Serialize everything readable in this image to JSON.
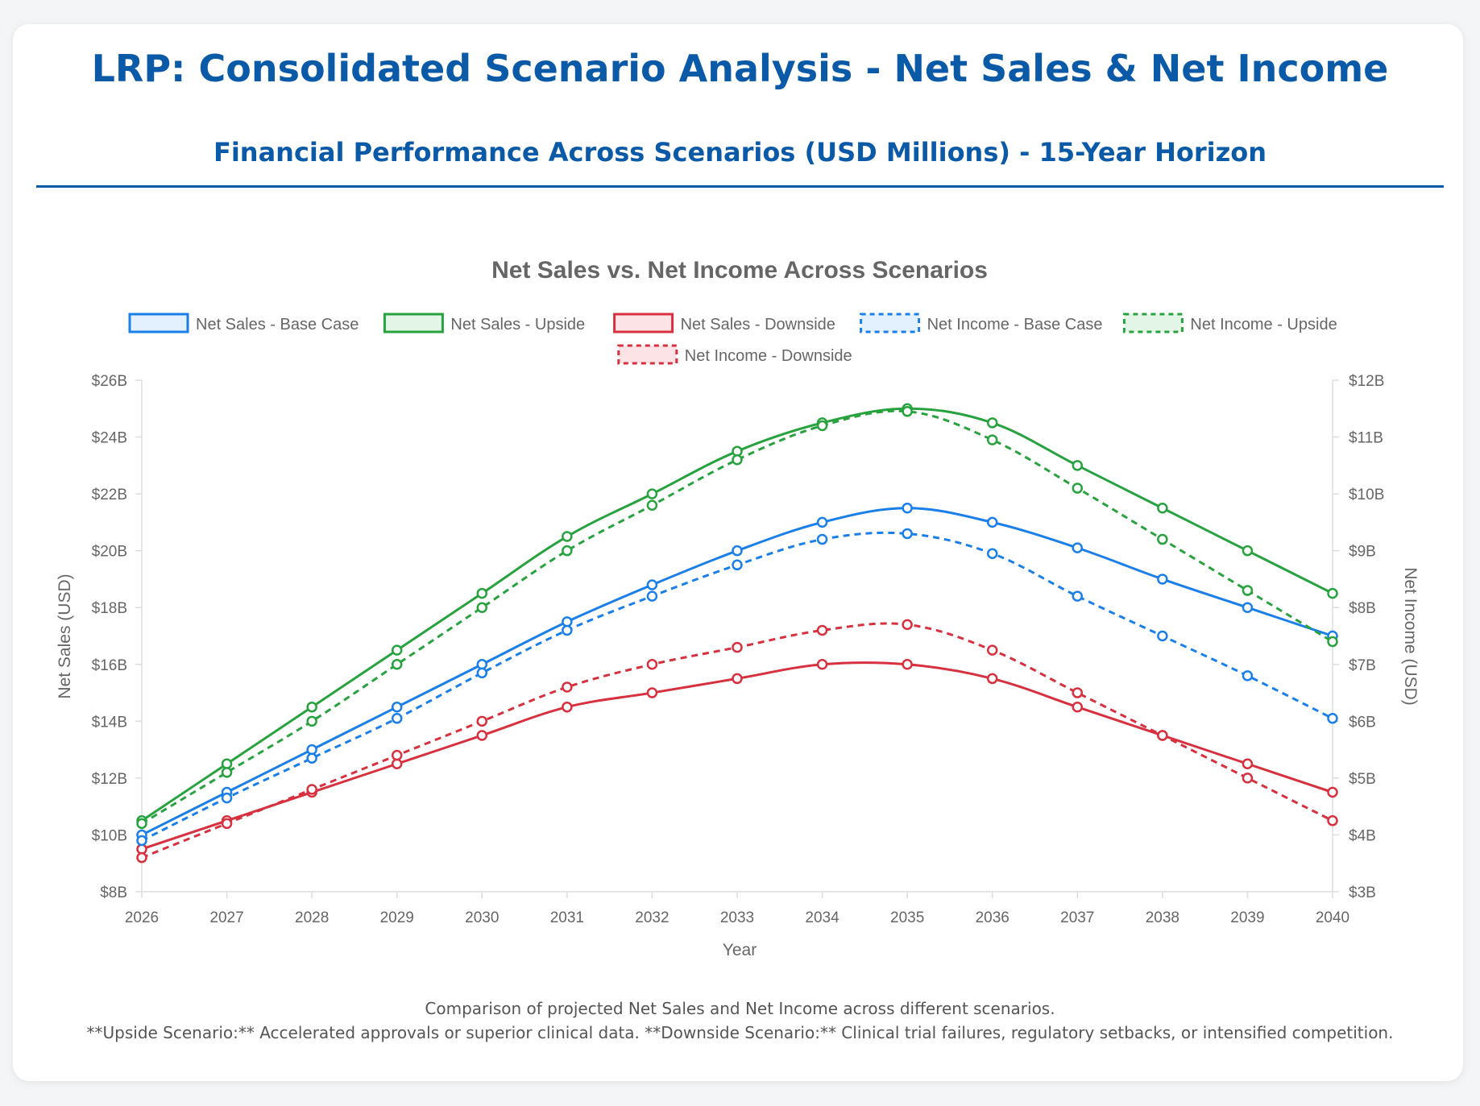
{
  "header": {
    "title": "LRP: Consolidated Scenario Analysis - Net Sales & Net Income",
    "subtitle": "Financial Performance Across Scenarios (USD Millions) - 15-Year Horizon"
  },
  "footer": {
    "line1": "Comparison of projected Net Sales and Net Income across different scenarios.",
    "line2": "**Upside Scenario:** Accelerated approvals or superior clinical data. **Downside Scenario:** Clinical trial failures, regulatory setbacks, or intensified competition."
  },
  "chart_data": {
    "type": "line",
    "title": "Net Sales vs. Net Income Across Scenarios",
    "xlabel": "Year",
    "ylabel": "Net Sales (USD)",
    "y2label": "Net Income (USD)",
    "categories": [
      "2026",
      "2027",
      "2028",
      "2029",
      "2030",
      "2031",
      "2032",
      "2033",
      "2034",
      "2035",
      "2036",
      "2037",
      "2038",
      "2039",
      "2040"
    ],
    "ylim": [
      8,
      26
    ],
    "y2lim": [
      3,
      12
    ],
    "yticks": [
      "$8B",
      "$10B",
      "$12B",
      "$14B",
      "$16B",
      "$18B",
      "$20B",
      "$22B",
      "$24B",
      "$26B"
    ],
    "y2ticks": [
      "$3B",
      "$4B",
      "$5B",
      "$6B",
      "$7B",
      "$8B",
      "$9B",
      "$10B",
      "$11B",
      "$12B"
    ],
    "grid": false,
    "legend_position": "top",
    "units": "USD billions",
    "series": [
      {
        "name": "Net Sales - Base Case",
        "axis": "left",
        "color": "#1a7fe8",
        "dashed": false,
        "values": [
          10.0,
          11.5,
          13.0,
          14.5,
          16.0,
          17.5,
          18.8,
          20.0,
          21.0,
          21.5,
          21.0,
          20.1,
          19.0,
          18.0,
          17.0
        ]
      },
      {
        "name": "Net Sales - Upside",
        "axis": "left",
        "color": "#28a23f",
        "dashed": false,
        "values": [
          10.5,
          12.5,
          14.5,
          16.5,
          18.5,
          20.5,
          22.0,
          23.5,
          24.5,
          25.0,
          24.5,
          23.0,
          21.5,
          20.0,
          18.5
        ]
      },
      {
        "name": "Net Sales - Downside",
        "axis": "left",
        "color": "#d7303f",
        "dashed": false,
        "values": [
          9.5,
          10.5,
          11.5,
          12.5,
          13.5,
          14.5,
          15.0,
          15.5,
          16.0,
          16.0,
          15.5,
          14.5,
          13.5,
          12.5,
          11.5
        ]
      },
      {
        "name": "Net Income - Base Case",
        "axis": "right",
        "color": "#1a7fe8",
        "dashed": true,
        "values": [
          3.9,
          4.65,
          5.35,
          6.05,
          6.85,
          7.6,
          8.2,
          8.75,
          9.2,
          9.3,
          8.95,
          8.2,
          7.5,
          6.8,
          6.05
        ]
      },
      {
        "name": "Net Income - Upside",
        "axis": "right",
        "color": "#28a23f",
        "dashed": true,
        "values": [
          4.2,
          5.1,
          6.0,
          7.0,
          8.0,
          9.0,
          9.8,
          10.6,
          11.2,
          11.45,
          10.95,
          10.1,
          9.2,
          8.3,
          7.4
        ]
      },
      {
        "name": "Net Income - Downside",
        "axis": "right",
        "color": "#d7303f",
        "dashed": true,
        "values": [
          3.6,
          4.2,
          4.8,
          5.4,
          6.0,
          6.6,
          7.0,
          7.3,
          7.6,
          7.7,
          7.25,
          6.5,
          5.75,
          5.0,
          4.25
        ]
      }
    ]
  }
}
